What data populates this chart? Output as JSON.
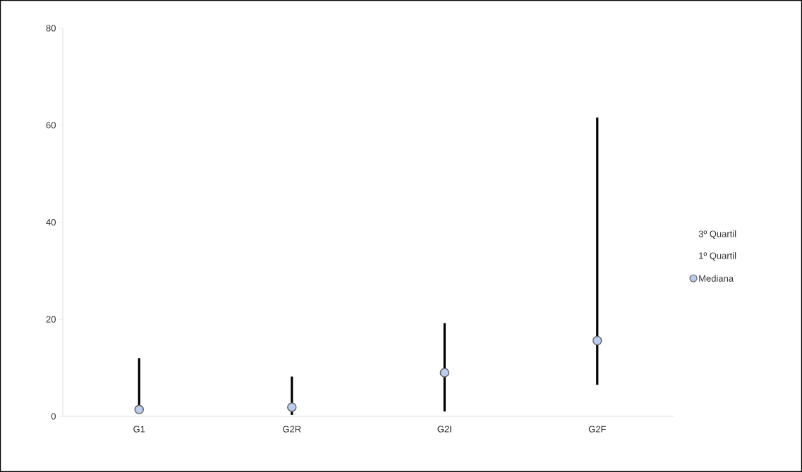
{
  "chart_data": {
    "type": "scatter",
    "categories": [
      "G1",
      "G2R",
      "G2I",
      "G2F"
    ],
    "ylim": [
      0,
      80
    ],
    "yticks": [
      0,
      20,
      40,
      60,
      80
    ],
    "grid": false,
    "legend": "right",
    "annotations": [
      "3º Quartil",
      "1º Quartil"
    ],
    "series": [
      {
        "name": "Mediana",
        "marker": "circle",
        "color": "#b9cdf0",
        "values": [
          1.4,
          1.9,
          9.0,
          15.6
        ],
        "errors": [
          [
            1.0,
            12.0
          ],
          [
            0.3,
            8.2
          ],
          [
            1.0,
            19.2
          ],
          [
            6.5,
            61.6
          ]
        ]
      }
    ]
  }
}
